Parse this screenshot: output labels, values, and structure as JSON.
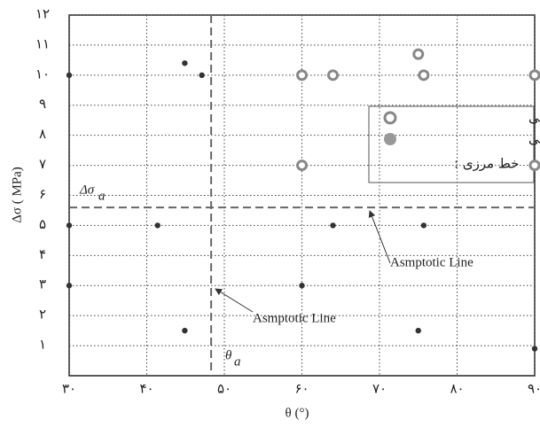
{
  "chart_data": {
    "type": "scatter",
    "x_label": "θ (°)",
    "y_label": "Δσ ( MPa)",
    "xlim": [
      30,
      90
    ],
    "ylim": [
      0,
      12
    ],
    "xticks": [
      {
        "value": 30,
        "label": "۳۰"
      },
      {
        "value": 40,
        "label": "۴۰"
      },
      {
        "value": 50,
        "label": "۵۰"
      },
      {
        "value": 60,
        "label": "۶۰"
      },
      {
        "value": 70,
        "label": "۷۰"
      },
      {
        "value": 80,
        "label": "۸۰"
      },
      {
        "value": 90,
        "label": "۹۰"
      }
    ],
    "yticks": [
      {
        "value": 1,
        "label": "۱"
      },
      {
        "value": 2,
        "label": "۲"
      },
      {
        "value": 3,
        "label": "۳"
      },
      {
        "value": 4,
        "label": "۴"
      },
      {
        "value": 5,
        "label": "۵"
      },
      {
        "value": 6,
        "label": "۶"
      },
      {
        "value": 7,
        "label": "۷"
      },
      {
        "value": 8,
        "label": "۸"
      },
      {
        "value": 9,
        "label": "۹"
      },
      {
        "value": 10,
        "label": "۱۰"
      },
      {
        "value": 11,
        "label": "۱۱"
      },
      {
        "value": 12,
        "label": "۱۲"
      }
    ],
    "grid": true,
    "series": [
      {
        "name": "قطع شدگی",
        "color": "#888888",
        "hollow": true,
        "x": [
          60,
          64,
          75,
          75.7,
          90,
          60,
          90
        ],
        "values": [
          10,
          10,
          10.7,
          10,
          10,
          7,
          7
        ]
      },
      {
        "name": "عدم قطع شدگی",
        "color": "#333333",
        "hollow": false,
        "x": [
          30,
          44.9,
          47.1,
          30,
          41.4,
          30,
          44.9,
          60,
          64,
          75.7,
          75,
          90
        ],
        "values": [
          10,
          10.4,
          10,
          5,
          5,
          3,
          1.5,
          3,
          5,
          5,
          1.5,
          0.9
        ]
      }
    ],
    "boundary": {
      "name": "خط مرزی :",
      "x": 48.3,
      "y": 5.6,
      "color": "#666666"
    },
    "annotations": {
      "sigma_symbol": "Δσ",
      "sigma_sub": "a",
      "theta_symbol": "θ",
      "theta_sub": "a",
      "horizontal_line_label": "Asmptotic Line",
      "vertical_line_label": "Asmptotic Line"
    }
  }
}
